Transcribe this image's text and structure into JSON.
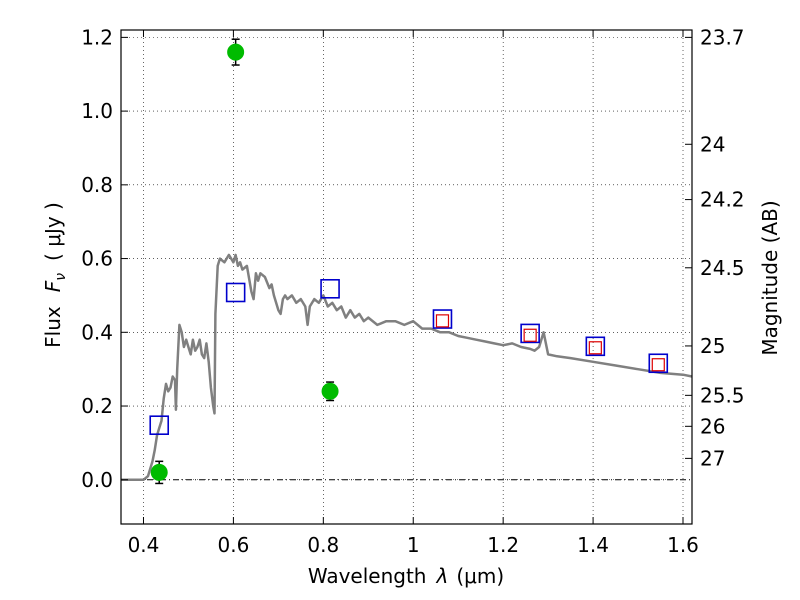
{
  "chart_data": {
    "type": "scatter",
    "xlabel_text": "Wavelength",
    "xlabel_symbol": "λ",
    "xlabel_unit": "(μm)",
    "ylabel_text": "Flux",
    "ylabel_symbol": "F",
    "ylabel_subscript": "ν",
    "ylabel_unit": "( μJy )",
    "y2label": "Magnitude (AB)",
    "xlim": [
      0.35,
      1.62
    ],
    "ylim": [
      -0.12,
      1.22
    ],
    "grid": true,
    "xticks": [
      0.4,
      0.6,
      0.8,
      1.0,
      1.2,
      1.4,
      1.6
    ],
    "xtick_labels": [
      "0.4",
      "0.6",
      "0.8",
      "1",
      "1.2",
      "1.4",
      "1.6"
    ],
    "yticks": [
      0.0,
      0.2,
      0.4,
      0.6,
      0.8,
      1.0,
      1.2
    ],
    "ytick_labels": [
      "0.0",
      "0.2",
      "0.4",
      "0.6",
      "0.8",
      "1.0",
      "1.2"
    ],
    "y2ticks": [
      {
        "label": "23.7",
        "flux": 1.2
      },
      {
        "label": "24",
        "flux": 0.91
      },
      {
        "label": "24.2",
        "flux": 0.76
      },
      {
        "label": "24.5",
        "flux": 0.575
      },
      {
        "label": "25",
        "flux": 0.363
      },
      {
        "label": "25.5",
        "flux": 0.229
      },
      {
        "label": "26",
        "flux": 0.145
      },
      {
        "label": "27",
        "flux": 0.058
      }
    ],
    "series": [
      {
        "kind": "sed_model_line",
        "color": "#808080",
        "x": [
          0.35,
          0.4,
          0.41,
          0.42,
          0.425,
          0.43,
          0.435,
          0.44,
          0.445,
          0.45,
          0.455,
          0.46,
          0.465,
          0.47,
          0.472,
          0.475,
          0.48,
          0.485,
          0.49,
          0.495,
          0.5,
          0.505,
          0.51,
          0.515,
          0.52,
          0.525,
          0.53,
          0.535,
          0.54,
          0.545,
          0.55,
          0.555,
          0.558,
          0.56,
          0.565,
          0.57,
          0.58,
          0.59,
          0.595,
          0.6,
          0.605,
          0.61,
          0.615,
          0.62,
          0.63,
          0.64,
          0.645,
          0.65,
          0.655,
          0.66,
          0.67,
          0.68,
          0.685,
          0.69,
          0.7,
          0.705,
          0.71,
          0.715,
          0.72,
          0.73,
          0.74,
          0.75,
          0.76,
          0.765,
          0.77,
          0.78,
          0.79,
          0.8,
          0.81,
          0.82,
          0.83,
          0.84,
          0.85,
          0.86,
          0.87,
          0.88,
          0.89,
          0.9,
          0.92,
          0.94,
          0.96,
          0.98,
          1.0,
          1.02,
          1.04,
          1.06,
          1.08,
          1.1,
          1.12,
          1.14,
          1.16,
          1.18,
          1.2,
          1.22,
          1.24,
          1.26,
          1.27,
          1.28,
          1.29,
          1.3,
          1.32,
          1.35,
          1.4,
          1.45,
          1.5,
          1.55,
          1.6,
          1.62
        ],
        "y": [
          0.0,
          0.0,
          0.01,
          0.05,
          0.08,
          0.12,
          0.14,
          0.16,
          0.22,
          0.26,
          0.24,
          0.25,
          0.28,
          0.27,
          0.19,
          0.3,
          0.42,
          0.4,
          0.36,
          0.38,
          0.36,
          0.34,
          0.38,
          0.35,
          0.36,
          0.38,
          0.34,
          0.33,
          0.37,
          0.32,
          0.25,
          0.2,
          0.18,
          0.45,
          0.58,
          0.6,
          0.59,
          0.61,
          0.6,
          0.59,
          0.61,
          0.58,
          0.59,
          0.57,
          0.58,
          0.51,
          0.49,
          0.56,
          0.54,
          0.56,
          0.55,
          0.52,
          0.53,
          0.5,
          0.46,
          0.45,
          0.49,
          0.5,
          0.49,
          0.5,
          0.48,
          0.49,
          0.47,
          0.42,
          0.47,
          0.49,
          0.48,
          0.5,
          0.47,
          0.48,
          0.46,
          0.47,
          0.44,
          0.46,
          0.44,
          0.45,
          0.43,
          0.44,
          0.42,
          0.43,
          0.43,
          0.42,
          0.43,
          0.41,
          0.41,
          0.4,
          0.4,
          0.39,
          0.385,
          0.38,
          0.375,
          0.37,
          0.365,
          0.37,
          0.36,
          0.355,
          0.35,
          0.36,
          0.4,
          0.34,
          0.335,
          0.33,
          0.32,
          0.31,
          0.3,
          0.29,
          0.285,
          0.28
        ]
      },
      {
        "kind": "model_photometry",
        "marker": "square",
        "color": "#0000cc",
        "x": [
          0.435,
          0.605,
          0.815,
          1.065,
          1.26,
          1.405,
          1.545
        ],
        "y": [
          0.148,
          0.508,
          0.518,
          0.436,
          0.397,
          0.362,
          0.316
        ]
      },
      {
        "kind": "observed_photometry_small",
        "marker": "square",
        "color": "#dd0000",
        "x": [
          1.065,
          1.26,
          1.405,
          1.545
        ],
        "y": [
          0.431,
          0.392,
          0.358,
          0.312
        ]
      },
      {
        "kind": "detections",
        "marker": "circle",
        "color": "#00bb00",
        "x": [
          0.435,
          0.605,
          0.815
        ],
        "y": [
          0.02,
          1.16,
          0.24
        ],
        "yerr": [
          0.03,
          0.035,
          0.025
        ]
      }
    ]
  }
}
